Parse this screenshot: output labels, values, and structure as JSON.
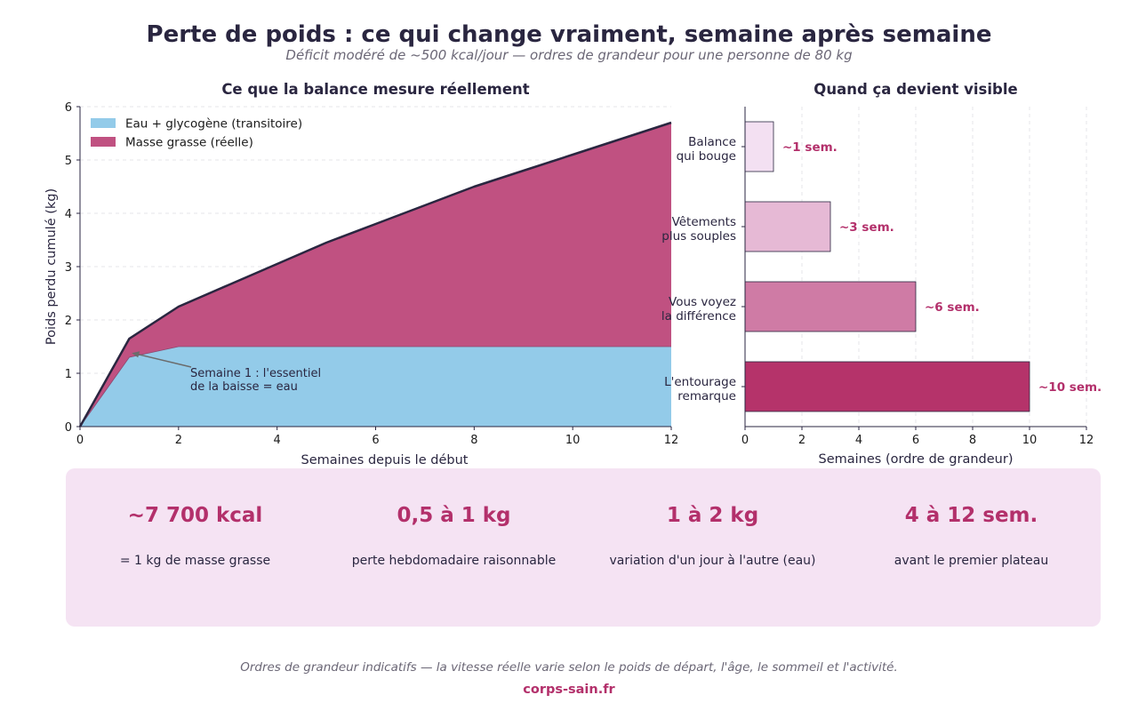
{
  "title": "Perte de poids : ce qui change vraiment, semaine après semaine",
  "subtitle": "Déficit modéré de ~500 kcal/jour — ordres de grandeur pour une personne de 80 kg",
  "chart_data": [
    {
      "type": "area",
      "title": "Ce que la balance mesure réellement",
      "xlabel": "Semaines depuis le début",
      "ylabel": "Poids perdu cumulé (kg)",
      "xlim": [
        0,
        12
      ],
      "ylim": [
        0,
        6
      ],
      "xticks": [
        0,
        2,
        4,
        6,
        8,
        10,
        12
      ],
      "yticks": [
        0,
        1,
        2,
        3,
        4,
        5,
        6
      ],
      "grid": "horizontal-dashed",
      "legend_position": "top-left",
      "stacked": true,
      "x": [
        0,
        1,
        2,
        3,
        4,
        5,
        6,
        7,
        8,
        9,
        10,
        11,
        12
      ],
      "series": [
        {
          "name": "Eau + glycogène (transitoire)",
          "color": "#93cbe9",
          "values": [
            0,
            1.3,
            1.5,
            1.5,
            1.5,
            1.5,
            1.5,
            1.5,
            1.5,
            1.5,
            1.5,
            1.5,
            1.5
          ]
        },
        {
          "name": "Masse grasse (réelle)",
          "color": "#c05181",
          "values": [
            0,
            0.35,
            0.75,
            1.15,
            1.55,
            1.95,
            2.3,
            2.65,
            3.0,
            3.3,
            3.6,
            3.9,
            4.2
          ]
        }
      ],
      "total_line_color": "#2a2640",
      "annotation": {
        "lines": [
          "Semaine 1 : l'essentiel",
          "de la baisse = eau"
        ],
        "target_x": 1.05,
        "target_y": 1.38,
        "text_x": 2.4,
        "text_y": 0.95
      }
    },
    {
      "type": "bar",
      "orientation": "horizontal",
      "title": "Quand ça devient visible",
      "xlabel": "Semaines (ordre de grandeur)",
      "xlim": [
        0,
        12
      ],
      "xticks": [
        0,
        2,
        4,
        6,
        8,
        10,
        12
      ],
      "grid": "vertical-dashed",
      "categories": [
        [
          "Balance",
          "qui bouge"
        ],
        [
          "Vêtements",
          "plus souples"
        ],
        [
          "Vous voyez",
          "la différence"
        ],
        [
          "L'entourage",
          "remarque"
        ]
      ],
      "values": [
        1,
        3,
        6,
        10
      ],
      "labels": [
        "~1 sem.",
        "~3 sem.",
        "~6 sem.",
        "~10 sem."
      ],
      "colors": [
        "#f3e0f2",
        "#e6b9d5",
        "#cf7ba5",
        "#b5336a"
      ]
    }
  ],
  "stats": [
    {
      "value": "~7 700 kcal",
      "label": "= 1 kg de masse grasse"
    },
    {
      "value": "0,5 à 1 kg",
      "label": "perte hebdomadaire raisonnable"
    },
    {
      "value": "1 à 2 kg",
      "label": "variation d'un jour à l'autre (eau)"
    },
    {
      "value": "4 à 12 sem.",
      "label": "avant le premier plateau"
    }
  ],
  "footnote": "Ordres de grandeur indicatifs — la vitesse réelle varie selon le poids de départ, l'âge, le sommeil et l'activité.",
  "source": "corps-sain.fr",
  "colors": {
    "accent": "#b3306b",
    "panel": "#f5e3f3",
    "text": "#2a2640"
  }
}
